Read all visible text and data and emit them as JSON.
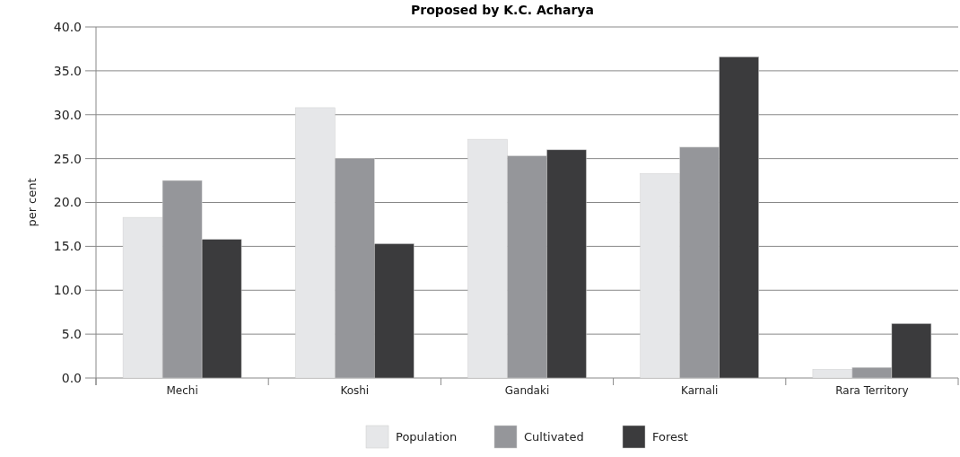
{
  "chart_data": {
    "type": "bar",
    "title": "Proposed by K.C. Acharya",
    "ylabel": "per cent",
    "categories": [
      "Mechi",
      "Koshi",
      "Gandaki",
      "Karnali",
      "Rara Territory"
    ],
    "series": [
      {
        "name": "Population",
        "color": "#e6e7e9",
        "values": [
          18.3,
          30.8,
          27.2,
          23.3,
          1.0
        ]
      },
      {
        "name": "Cultivated",
        "color": "#95969a",
        "values": [
          22.5,
          25.0,
          25.3,
          26.3,
          1.2
        ]
      },
      {
        "name": "Forest",
        "color": "#3b3b3d",
        "values": [
          15.8,
          15.3,
          26.0,
          36.6,
          6.2
        ]
      }
    ],
    "ylim": [
      0,
      40
    ],
    "yticks": [
      {
        "value": 0,
        "label": "0.0"
      },
      {
        "value": 5,
        "label": "5.0"
      },
      {
        "value": 10,
        "label": "10.0"
      },
      {
        "value": 15,
        "label": "15.0"
      },
      {
        "value": 20,
        "label": "20.0"
      },
      {
        "value": 25,
        "label": "25.0"
      },
      {
        "value": 30,
        "label": "30.0"
      },
      {
        "value": 35,
        "label": "35.0"
      },
      {
        "value": 40,
        "label": "40.0"
      }
    ],
    "grid": "y",
    "legend": "bottom"
  }
}
